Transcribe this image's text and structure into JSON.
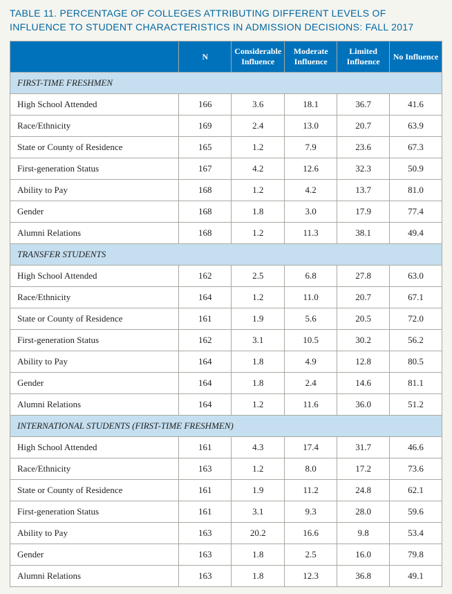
{
  "title": "TABLE 11. PERCENTAGE OF COLLEGES ATTRIBUTING DIFFERENT LEVELS OF INFLUENCE TO STUDENT CHARACTERISTICS IN ADMISSION DECISIONS: FALL 2017",
  "colors": {
    "title": "#0066a1",
    "header_bg": "#0072bc",
    "header_fg": "#ffffff",
    "section_bg": "#c5dff0",
    "border": "#a8a8a0",
    "page_bg": "#f5f5f0",
    "cell_bg": "#ffffff"
  },
  "columns": [
    "",
    "N",
    "Considerable Influence",
    "Moderate Influence",
    "Limited Influence",
    "No Influence"
  ],
  "sections": [
    {
      "label": "FIRST-TIME FRESHMEN",
      "rows": [
        {
          "label": "High School Attended",
          "n": "166",
          "c": "3.6",
          "m": "18.1",
          "l": "36.7",
          "no": "41.6"
        },
        {
          "label": "Race/Ethnicity",
          "n": "169",
          "c": "2.4",
          "m": "13.0",
          "l": "20.7",
          "no": "63.9"
        },
        {
          "label": "State or County of Residence",
          "n": "165",
          "c": "1.2",
          "m": "7.9",
          "l": "23.6",
          "no": "67.3"
        },
        {
          "label": "First-generation Status",
          "n": "167",
          "c": "4.2",
          "m": "12.6",
          "l": "32.3",
          "no": "50.9"
        },
        {
          "label": "Ability to Pay",
          "n": "168",
          "c": "1.2",
          "m": "4.2",
          "l": "13.7",
          "no": "81.0"
        },
        {
          "label": "Gender",
          "n": "168",
          "c": "1.8",
          "m": "3.0",
          "l": "17.9",
          "no": "77.4"
        },
        {
          "label": "Alumni Relations",
          "n": "168",
          "c": "1.2",
          "m": "11.3",
          "l": "38.1",
          "no": "49.4"
        }
      ]
    },
    {
      "label": "TRANSFER STUDENTS",
      "rows": [
        {
          "label": "High School Attended",
          "n": "162",
          "c": "2.5",
          "m": "6.8",
          "l": "27.8",
          "no": "63.0"
        },
        {
          "label": "Race/Ethnicity",
          "n": "164",
          "c": "1.2",
          "m": "11.0",
          "l": "20.7",
          "no": "67.1"
        },
        {
          "label": "State or County of Residence",
          "n": "161",
          "c": "1.9",
          "m": "5.6",
          "l": "20.5",
          "no": "72.0"
        },
        {
          "label": "First-generation Status",
          "n": "162",
          "c": "3.1",
          "m": "10.5",
          "l": "30.2",
          "no": "56.2"
        },
        {
          "label": "Ability to Pay",
          "n": "164",
          "c": "1.8",
          "m": "4.9",
          "l": "12.8",
          "no": "80.5"
        },
        {
          "label": "Gender",
          "n": "164",
          "c": "1.8",
          "m": "2.4",
          "l": "14.6",
          "no": "81.1"
        },
        {
          "label": "Alumni Relations",
          "n": "164",
          "c": "1.2",
          "m": "11.6",
          "l": "36.0",
          "no": "51.2"
        }
      ]
    },
    {
      "label": "INTERNATIONAL STUDENTS (FIRST-TIME FRESHMEN)",
      "rows": [
        {
          "label": "High School Attended",
          "n": "161",
          "c": "4.3",
          "m": "17.4",
          "l": "31.7",
          "no": "46.6"
        },
        {
          "label": "Race/Ethnicity",
          "n": "163",
          "c": "1.2",
          "m": "8.0",
          "l": "17.2",
          "no": "73.6"
        },
        {
          "label": "State or County of Residence",
          "n": "161",
          "c": "1.9",
          "m": "11.2",
          "l": "24.8",
          "no": "62.1"
        },
        {
          "label": "First-generation Status",
          "n": "161",
          "c": "3.1",
          "m": "9.3",
          "l": "28.0",
          "no": "59.6"
        },
        {
          "label": "Ability to Pay",
          "n": "163",
          "c": "20.2",
          "m": "16.6",
          "l": "9.8",
          "no": "53.4"
        },
        {
          "label": "Gender",
          "n": "163",
          "c": "1.8",
          "m": "2.5",
          "l": "16.0",
          "no": "79.8"
        },
        {
          "label": "Alumni Relations",
          "n": "163",
          "c": "1.8",
          "m": "12.3",
          "l": "36.8",
          "no": "49.1"
        }
      ]
    }
  ]
}
